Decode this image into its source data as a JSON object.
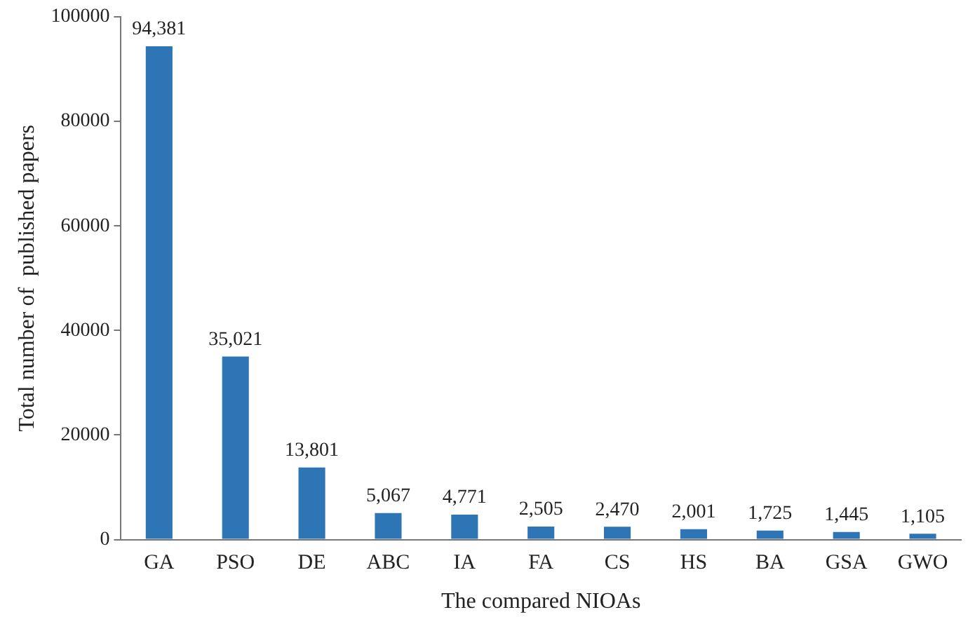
{
  "chart_data": {
    "type": "bar",
    "xlabel": "The compared NIOAs",
    "ylabel": "Total number of  published papers",
    "categories": [
      "GA",
      "PSO",
      "DE",
      "ABC",
      "IA",
      "FA",
      "CS",
      "HS",
      "BA",
      "GSA",
      "GWO"
    ],
    "values": [
      94381,
      35021,
      13801,
      5067,
      4771,
      2505,
      2470,
      2001,
      1725,
      1445,
      1105
    ],
    "value_labels": [
      "94,381",
      "35,021",
      "13,801",
      "5,067",
      "4,771",
      "2,505",
      "2,470",
      "2,001",
      "1,725",
      "1,445",
      "1,105"
    ],
    "color": "#2e75b6",
    "ylim": [
      0,
      100000
    ],
    "yticks": [
      0,
      20000,
      40000,
      60000,
      80000,
      100000
    ],
    "grid": false,
    "legend": false
  }
}
